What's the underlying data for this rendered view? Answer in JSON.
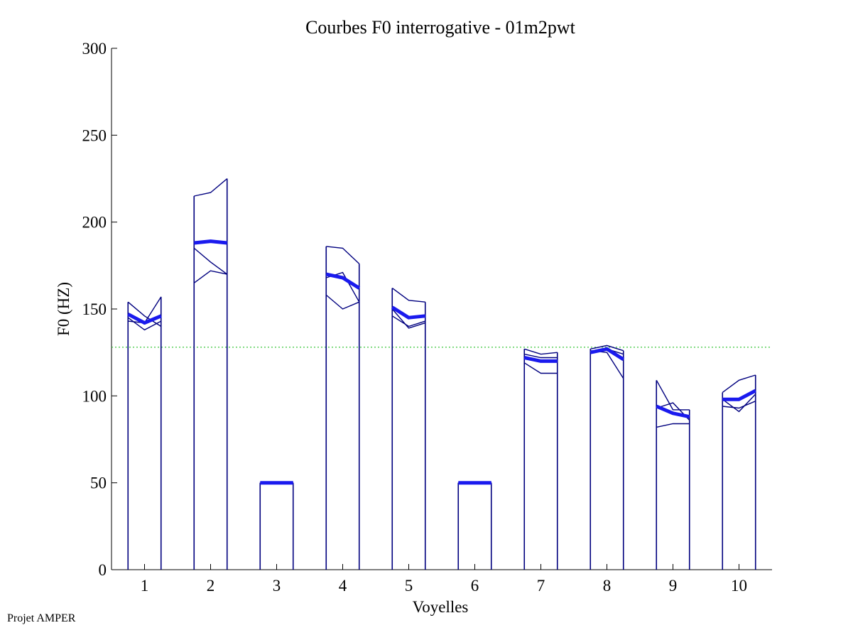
{
  "chart_data": {
    "type": "line",
    "title": "Courbes F0 interrogative - 01m2pwt",
    "xlabel": "Voyelles",
    "ylabel": "F0 (HZ)",
    "ylim": [
      0,
      300
    ],
    "yticks": [
      0,
      50,
      100,
      150,
      200,
      250,
      300
    ],
    "xlim": [
      0.5,
      10.5
    ],
    "xticks": [
      1,
      2,
      3,
      4,
      5,
      6,
      7,
      8,
      9,
      10
    ],
    "grid": false,
    "reference_line": {
      "y": 128,
      "style": "dotted",
      "color": "#22c022"
    },
    "vowels": [
      {
        "x": 1,
        "start": 0.75,
        "end": 1.25,
        "thin": [
          [
            154,
            146,
            140
          ],
          [
            145,
            138,
            143
          ],
          [
            143,
            142,
            157
          ]
        ],
        "mean": [
          147,
          142,
          146
        ]
      },
      {
        "x": 2,
        "start": 1.75,
        "end": 2.25,
        "thin": [
          [
            215,
            217,
            225
          ],
          [
            185,
            177,
            170
          ],
          [
            165,
            172,
            170
          ]
        ],
        "mean": [
          188,
          189,
          188
        ]
      },
      {
        "x": 3,
        "start": 2.75,
        "end": 3.25,
        "thin": [
          [
            50,
            50,
            50
          ]
        ],
        "mean": [
          50,
          50,
          50
        ]
      },
      {
        "x": 4,
        "start": 3.75,
        "end": 4.25,
        "thin": [
          [
            186,
            185,
            176
          ],
          [
            158,
            150,
            154
          ],
          [
            168,
            171,
            154
          ]
        ],
        "mean": [
          170,
          168,
          162
        ]
      },
      {
        "x": 5,
        "start": 4.75,
        "end": 5.25,
        "thin": [
          [
            162,
            155,
            154
          ],
          [
            146,
            140,
            143
          ],
          [
            150,
            139,
            142
          ]
        ],
        "mean": [
          151,
          145,
          146
        ]
      },
      {
        "x": 6,
        "start": 5.75,
        "end": 6.25,
        "thin": [
          [
            50,
            50,
            50
          ]
        ],
        "mean": [
          50,
          50,
          50
        ]
      },
      {
        "x": 7,
        "start": 6.75,
        "end": 7.25,
        "thin": [
          [
            127,
            124,
            125
          ],
          [
            119,
            113,
            113
          ],
          [
            124,
            122,
            122
          ]
        ],
        "mean": [
          122,
          120,
          120
        ]
      },
      {
        "x": 8,
        "start": 7.75,
        "end": 8.25,
        "thin": [
          [
            127,
            129,
            126
          ],
          [
            125,
            127,
            124
          ],
          [
            126,
            125,
            110
          ]
        ],
        "mean": [
          125,
          127,
          121
        ]
      },
      {
        "x": 9,
        "start": 8.75,
        "end": 9.25,
        "thin": [
          [
            109,
            92,
            92
          ],
          [
            82,
            84,
            84
          ],
          [
            93,
            96,
            86
          ]
        ],
        "mean": [
          94,
          90,
          88
        ]
      },
      {
        "x": 10,
        "start": 9.75,
        "end": 10.25,
        "thin": [
          [
            102,
            109,
            112
          ],
          [
            94,
            93,
            97
          ],
          [
            98,
            91,
            101
          ]
        ],
        "mean": [
          98,
          98,
          103
        ]
      }
    ],
    "colors": {
      "thin": "#00007f",
      "mean": "#1a1aee",
      "axis": "#000000"
    }
  },
  "footer": {
    "text": "Projet AMPER"
  }
}
